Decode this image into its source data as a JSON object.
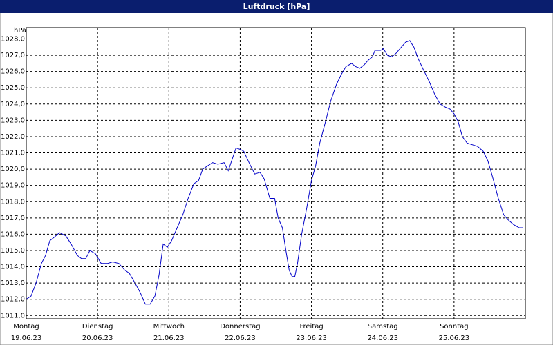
{
  "chart_data": {
    "type": "line",
    "title": "Luftdruck [hPa]",
    "y_unit": "hPa",
    "xlim": [
      0,
      168
    ],
    "ylim": [
      1010.8,
      1028.7
    ],
    "grid": true,
    "xticks": [
      {
        "value": 0,
        "label": [
          "Montag",
          "19.06.23"
        ]
      },
      {
        "value": 24,
        "label": [
          "Dienstag",
          "20.06.23"
        ]
      },
      {
        "value": 48,
        "label": [
          "Mittwoch",
          "21.06.23"
        ]
      },
      {
        "value": 72,
        "label": [
          "Donnerstag",
          "22.06.23"
        ]
      },
      {
        "value": 96,
        "label": [
          "Freitag",
          "23.06.23"
        ]
      },
      {
        "value": 120,
        "label": [
          "Samstag",
          "24.06.23"
        ]
      },
      {
        "value": 144,
        "label": [
          "Sonntag",
          "25.06.23"
        ]
      }
    ],
    "yticks": [
      {
        "value": 1011,
        "label": "1011,0"
      },
      {
        "value": 1012,
        "label": "1012,0"
      },
      {
        "value": 1013,
        "label": "1013,0"
      },
      {
        "value": 1014,
        "label": "1014,0"
      },
      {
        "value": 1015,
        "label": "1015,0"
      },
      {
        "value": 1016,
        "label": "1016,0"
      },
      {
        "value": 1017,
        "label": "1017,0"
      },
      {
        "value": 1018,
        "label": "1018,0"
      },
      {
        "value": 1019,
        "label": "1019,0"
      },
      {
        "value": 1020,
        "label": "1020,0"
      },
      {
        "value": 1021,
        "label": "1021,0"
      },
      {
        "value": 1022,
        "label": "1022,0"
      },
      {
        "value": 1023,
        "label": "1023,0"
      },
      {
        "value": 1024,
        "label": "1024,0"
      },
      {
        "value": 1025,
        "label": "1025,0"
      },
      {
        "value": 1026,
        "label": "1026,0"
      },
      {
        "value": 1027,
        "label": "1027,0"
      },
      {
        "value": 1028,
        "label": "1028,0"
      }
    ],
    "color": "#0000c8",
    "x": [
      0,
      1.6,
      3.3,
      5.1,
      6.5,
      7.9,
      9.3,
      11.2,
      13.3,
      15.1,
      17.2,
      18.6,
      20.0,
      21.4,
      23.3,
      25.2,
      27.3,
      29.1,
      31.2,
      33.1,
      34.7,
      36.6,
      38.4,
      40.1,
      41.7,
      43.3,
      44.7,
      46.1,
      47.5,
      48.9,
      50.8,
      52.7,
      54.5,
      56.4,
      58.0,
      59.4,
      61.0,
      62.7,
      64.5,
      66.6,
      68.0,
      70.6,
      72.2,
      73.2,
      75.0,
      76.9,
      78.7,
      80.1,
      82.0,
      83.6,
      84.8,
      86.2,
      87.4,
      88.5,
      89.5,
      90.4,
      91.3,
      92.7,
      94.4,
      96.0,
      97.4,
      98.8,
      100.7,
      102.5,
      104.4,
      106.0,
      107.6,
      109.5,
      110.9,
      112.3,
      113.7,
      115.1,
      116.5,
      117.4,
      119.3,
      120.2,
      121.6,
      123.0,
      124.4,
      125.8,
      127.7,
      129.1,
      130.5,
      131.9,
      133.7,
      135.6,
      137.5,
      139.3,
      141.2,
      142.6,
      144.0,
      145.4,
      146.8,
      148.4,
      150.1,
      151.9,
      153.8,
      155.4,
      157.0,
      158.9,
      160.7,
      162.1,
      164.0,
      165.9,
      167.3
    ],
    "values": [
      1012.0,
      1012.2,
      1013.0,
      1014.2,
      1014.7,
      1015.6,
      1015.8,
      1016.1,
      1015.9,
      1015.4,
      1014.7,
      1014.5,
      1014.5,
      1015.0,
      1014.8,
      1014.2,
      1014.2,
      1014.3,
      1014.2,
      1013.8,
      1013.6,
      1013.0,
      1012.4,
      1011.7,
      1011.7,
      1012.2,
      1013.5,
      1015.4,
      1015.2,
      1015.6,
      1016.4,
      1017.2,
      1018.2,
      1019.1,
      1019.3,
      1020.0,
      1020.2,
      1020.4,
      1020.3,
      1020.4,
      1019.9,
      1021.3,
      1021.2,
      1021.1,
      1020.4,
      1019.7,
      1019.8,
      1019.4,
      1018.2,
      1018.2,
      1017.0,
      1016.4,
      1015.0,
      1013.8,
      1013.4,
      1013.4,
      1014.2,
      1016.0,
      1017.6,
      1019.3,
      1020.2,
      1021.6,
      1022.9,
      1024.2,
      1025.2,
      1025.8,
      1026.3,
      1026.5,
      1026.3,
      1026.2,
      1026.4,
      1026.7,
      1026.9,
      1027.3,
      1027.3,
      1027.4,
      1027.0,
      1026.9,
      1027.1,
      1027.4,
      1027.8,
      1027.9,
      1027.5,
      1026.8,
      1026.1,
      1025.4,
      1024.6,
      1024.0,
      1023.8,
      1023.7,
      1023.4,
      1022.9,
      1022.0,
      1021.6,
      1021.5,
      1021.4,
      1021.1,
      1020.5,
      1019.5,
      1018.2,
      1017.2,
      1016.9,
      1016.6,
      1016.4,
      1016.4
    ]
  }
}
